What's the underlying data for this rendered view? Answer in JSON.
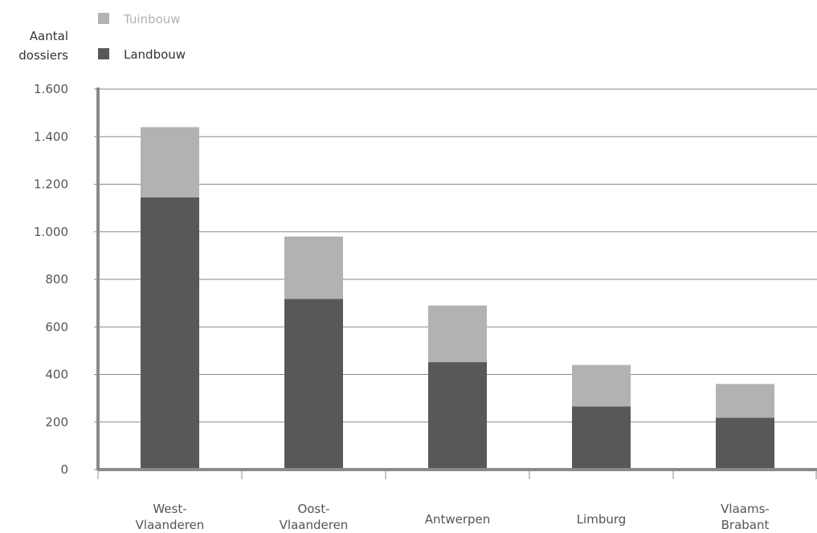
{
  "chart_data": {
    "type": "bar",
    "stacked": true,
    "ylabel": [
      "Aantal",
      "dossiers"
    ],
    "ylim": [
      0,
      1600
    ],
    "yticks": [
      0,
      200,
      400,
      600,
      800,
      1000,
      1200,
      1400,
      1600
    ],
    "ytick_labels": [
      "0",
      "200",
      "400",
      "600",
      "800",
      "1.000",
      "1.200",
      "1.400",
      "1.600"
    ],
    "categories": [
      [
        "West-",
        "Vlaanderen"
      ],
      [
        "Oost-",
        "Vlaanderen"
      ],
      [
        "Antwerpen"
      ],
      [
        "Limburg"
      ],
      [
        "Vlaams-",
        "Brabant"
      ]
    ],
    "series": [
      {
        "name": "Landbouw",
        "color": "#58585a",
        "values": [
          1145,
          718,
          452,
          265,
          218
        ]
      },
      {
        "name": "Tuinbouw",
        "color": "#b2b2b2",
        "values": [
          295,
          262,
          238,
          175,
          142
        ]
      }
    ],
    "legend": [
      {
        "name": "Tuinbouw",
        "color": "#b2b2b2",
        "text_color": "#b2b2b2"
      },
      {
        "name": "Landbouw",
        "color": "#58585a",
        "text_color": "#333333"
      }
    ],
    "legend_position": "top-left",
    "grid": true
  }
}
